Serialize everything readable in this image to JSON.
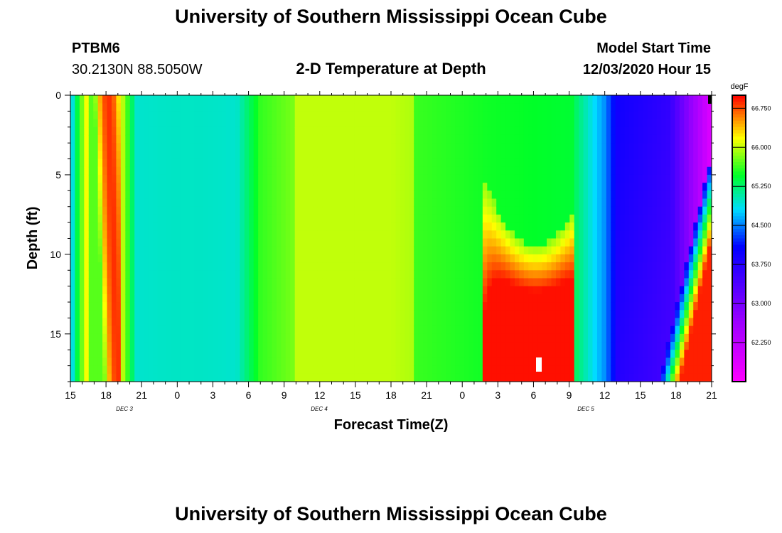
{
  "header": {
    "title": "University of Southern Mississippi Ocean Cube",
    "station": "PTBM6",
    "location": "30.2130N 88.5050W",
    "start_label": "Model Start Time",
    "start_time": "12/03/2020 Hour 15"
  },
  "footer": {
    "title": "University of Southern Mississippi Ocean Cube"
  },
  "chart_data": {
    "type": "heatmap",
    "title": "2-D Temperature at Depth",
    "xlabel": "Forecast Time(Z)",
    "ylabel": "Depth (ft)",
    "x_ticks": [
      "15",
      "18",
      "21",
      "0",
      "3",
      "6",
      "9",
      "12",
      "15",
      "18",
      "21",
      "0",
      "3",
      "6",
      "9",
      "12",
      "15",
      "18",
      "21"
    ],
    "date_labels": [
      "DEC 3",
      "DEC 4",
      "DEC 5"
    ],
    "y_ticks": [
      "0",
      "5",
      "10",
      "15"
    ],
    "yrange": [
      0,
      18
    ],
    "colorbar": {
      "unit": "degF",
      "labels": [
        "66.750",
        "66.000",
        "65.250",
        "64.500",
        "63.750",
        "63.000",
        "62.250"
      ],
      "range": [
        61.5,
        67.0
      ]
    }
  }
}
